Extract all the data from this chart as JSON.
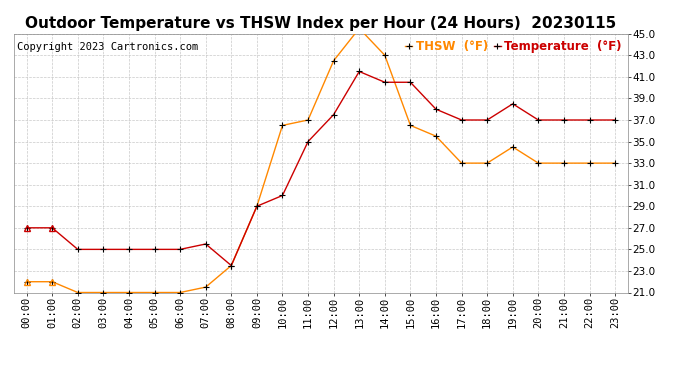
{
  "title": "Outdoor Temperature vs THSW Index per Hour (24 Hours)  20230115",
  "copyright": "Copyright 2023 Cartronics.com",
  "hours": [
    "00:00",
    "01:00",
    "02:00",
    "03:00",
    "04:00",
    "05:00",
    "06:00",
    "07:00",
    "08:00",
    "09:00",
    "10:00",
    "11:00",
    "12:00",
    "13:00",
    "14:00",
    "15:00",
    "16:00",
    "17:00",
    "18:00",
    "19:00",
    "20:00",
    "21:00",
    "22:00",
    "23:00"
  ],
  "temperature": [
    27.0,
    27.0,
    25.0,
    25.0,
    25.0,
    25.0,
    25.0,
    25.5,
    23.5,
    29.0,
    30.0,
    35.0,
    37.5,
    41.5,
    40.5,
    40.5,
    38.0,
    37.0,
    37.0,
    38.5,
    37.0,
    37.0,
    37.0,
    37.0
  ],
  "thsw": [
    22.0,
    22.0,
    21.0,
    21.0,
    21.0,
    21.0,
    21.0,
    21.5,
    23.5,
    29.0,
    36.5,
    37.0,
    42.5,
    45.5,
    43.0,
    36.5,
    35.5,
    33.0,
    33.0,
    34.5,
    33.0,
    33.0,
    33.0,
    33.0
  ],
  "temp_color": "#cc0000",
  "thsw_color": "#ff8800",
  "marker": "+",
  "marker_first": "^",
  "ylim": [
    21.0,
    45.0
  ],
  "yticks": [
    21.0,
    23.0,
    25.0,
    27.0,
    29.0,
    31.0,
    33.0,
    35.0,
    37.0,
    39.0,
    41.0,
    43.0,
    45.0
  ],
  "background_color": "#ffffff",
  "grid_color": "#bbbbbb",
  "legend_thsw": "THSW  (°F)",
  "legend_temp": "Temperature  (°F)",
  "title_fontsize": 11,
  "copyright_fontsize": 7.5,
  "legend_fontsize": 8.5,
  "tick_fontsize": 7.5
}
